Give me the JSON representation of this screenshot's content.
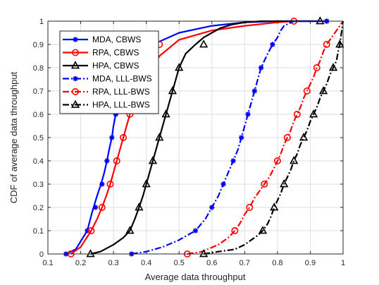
{
  "chart_data": {
    "type": "line",
    "title": "",
    "xlabel": "Average data throughput",
    "ylabel": "CDF of average data throughput",
    "xlim": [
      0.1,
      1.0
    ],
    "ylim": [
      0,
      1
    ],
    "xticks": [
      "0.1",
      "0.2",
      "0.3",
      "0.4",
      "0.5",
      "0.6",
      "0.7",
      "0.8",
      "0.9",
      "1"
    ],
    "yticks": [
      "0",
      "0.1",
      "0.2",
      "0.3",
      "0.4",
      "0.5",
      "0.6",
      "0.7",
      "0.8",
      "0.9",
      "1"
    ],
    "grid": true,
    "legend_position": "top-left",
    "series": [
      {
        "name": "MDA, CBWS",
        "color": "#0000ff",
        "line_style": "solid",
        "marker": "asterisk",
        "x": [
          0.155,
          0.185,
          0.22,
          0.235,
          0.25,
          0.262,
          0.272,
          0.28,
          0.287,
          0.295,
          0.3,
          0.307,
          0.312,
          0.32,
          0.33,
          0.345,
          0.37,
          0.42,
          0.5,
          0.6,
          0.7,
          0.8,
          0.9,
          0.95
        ],
        "y": [
          0.0,
          0.02,
          0.1,
          0.18,
          0.25,
          0.3,
          0.35,
          0.4,
          0.45,
          0.5,
          0.55,
          0.6,
          0.65,
          0.7,
          0.75,
          0.8,
          0.85,
          0.9,
          0.95,
          0.98,
          0.995,
          1.0,
          1.0,
          1.0
        ],
        "marker_y": [
          0.0,
          0.1,
          0.2,
          0.3,
          0.4,
          0.5,
          0.6,
          0.7,
          0.8,
          0.9,
          1.0
        ],
        "marker_x": [
          0.155,
          0.22,
          0.245,
          0.265,
          0.28,
          0.295,
          0.307,
          0.32,
          0.345,
          0.42,
          0.95
        ]
      },
      {
        "name": "RPA, CBWS",
        "color": "#ff0000",
        "line_style": "solid",
        "marker": "circle",
        "x": [
          0.17,
          0.2,
          0.232,
          0.25,
          0.265,
          0.278,
          0.29,
          0.3,
          0.31,
          0.32,
          0.33,
          0.34,
          0.35,
          0.36,
          0.38,
          0.4,
          0.44,
          0.5,
          0.6,
          0.7,
          0.8,
          0.85
        ],
        "y": [
          0.0,
          0.03,
          0.1,
          0.15,
          0.2,
          0.25,
          0.3,
          0.35,
          0.4,
          0.45,
          0.5,
          0.55,
          0.6,
          0.65,
          0.7,
          0.75,
          0.85,
          0.92,
          0.96,
          0.98,
          0.995,
          1.0
        ],
        "marker_y": [
          0.0,
          0.1,
          0.2,
          0.3,
          0.4,
          0.5,
          0.6,
          0.7,
          0.8,
          0.9,
          1.0
        ],
        "marker_x": [
          0.17,
          0.232,
          0.265,
          0.29,
          0.31,
          0.33,
          0.35,
          0.38,
          0.4,
          0.44,
          0.85
        ]
      },
      {
        "name": "HPA, CBWS",
        "color": "#000000",
        "line_style": "solid",
        "marker": "triangle",
        "x": [
          0.23,
          0.26,
          0.3,
          0.33,
          0.35,
          0.365,
          0.378,
          0.39,
          0.4,
          0.41,
          0.42,
          0.43,
          0.44,
          0.45,
          0.46,
          0.47,
          0.48,
          0.49,
          0.5,
          0.51,
          0.52,
          0.535,
          0.55,
          0.575,
          0.6,
          0.625,
          0.66,
          0.7,
          0.75,
          0.8,
          0.85,
          0.93
        ],
        "y": [
          0.0,
          0.01,
          0.04,
          0.07,
          0.1,
          0.15,
          0.2,
          0.25,
          0.3,
          0.35,
          0.4,
          0.45,
          0.5,
          0.55,
          0.6,
          0.65,
          0.7,
          0.75,
          0.8,
          0.83,
          0.86,
          0.88,
          0.9,
          0.93,
          0.95,
          0.97,
          0.985,
          0.995,
          1.0,
          1.0,
          1.0,
          1.0
        ],
        "marker_y": [
          0.0,
          0.1,
          0.2,
          0.3,
          0.4,
          0.5,
          0.6,
          0.7,
          0.8,
          0.9,
          1.0
        ],
        "marker_x": [
          0.23,
          0.35,
          0.378,
          0.4,
          0.42,
          0.44,
          0.46,
          0.48,
          0.5,
          0.575,
          0.93
        ]
      },
      {
        "name": "MDA, LLL-BWS",
        "color": "#0000ff",
        "line_style": "dash-dot",
        "marker": "asterisk",
        "x": [
          0.355,
          0.4,
          0.45,
          0.5,
          0.55,
          0.58,
          0.6,
          0.62,
          0.635,
          0.65,
          0.665,
          0.68,
          0.69,
          0.7,
          0.71,
          0.72,
          0.73,
          0.74,
          0.75,
          0.76,
          0.77,
          0.785,
          0.8,
          0.81,
          0.82,
          0.835,
          0.85,
          0.87,
          0.9,
          0.95
        ],
        "y": [
          0.0,
          0.01,
          0.03,
          0.06,
          0.1,
          0.15,
          0.2,
          0.25,
          0.3,
          0.35,
          0.4,
          0.45,
          0.5,
          0.55,
          0.6,
          0.65,
          0.7,
          0.75,
          0.8,
          0.83,
          0.86,
          0.9,
          0.93,
          0.96,
          0.98,
          0.99,
          1.0,
          1.0,
          1.0,
          1.0
        ],
        "marker_y": [
          0.0,
          0.1,
          0.2,
          0.3,
          0.4,
          0.5,
          0.6,
          0.7,
          0.8,
          0.9,
          1.0
        ],
        "marker_x": [
          0.355,
          0.55,
          0.6,
          0.635,
          0.665,
          0.69,
          0.71,
          0.73,
          0.75,
          0.785,
          0.95
        ]
      },
      {
        "name": "RPA, LLL-BWS",
        "color": "#ff0000",
        "line_style": "dash-dot",
        "marker": "circle",
        "x": [
          0.525,
          0.57,
          0.62,
          0.65,
          0.67,
          0.685,
          0.7,
          0.715,
          0.73,
          0.745,
          0.76,
          0.775,
          0.79,
          0.8,
          0.81,
          0.82,
          0.83,
          0.84,
          0.85,
          0.86,
          0.87,
          0.88,
          0.89,
          0.9,
          0.91,
          0.92,
          0.93,
          0.94,
          0.95,
          0.96,
          0.97,
          0.98,
          0.99,
          1.0
        ],
        "y": [
          0.0,
          0.01,
          0.04,
          0.07,
          0.1,
          0.13,
          0.17,
          0.2,
          0.24,
          0.27,
          0.3,
          0.33,
          0.37,
          0.4,
          0.43,
          0.47,
          0.5,
          0.53,
          0.57,
          0.6,
          0.63,
          0.67,
          0.7,
          0.73,
          0.76,
          0.8,
          0.83,
          0.87,
          0.9,
          0.92,
          0.94,
          0.96,
          0.98,
          1.0
        ],
        "marker_y": [
          0.0,
          0.1,
          0.2,
          0.3,
          0.4,
          0.5,
          0.6,
          0.7,
          0.8,
          0.9
        ],
        "marker_x": [
          0.525,
          0.67,
          0.715,
          0.76,
          0.8,
          0.83,
          0.86,
          0.89,
          0.92,
          0.95
        ]
      },
      {
        "name": "HPA, LLL-BWS",
        "color": "#000000",
        "line_style": "dash-dot",
        "marker": "triangle",
        "x": [
          0.575,
          0.62,
          0.67,
          0.7,
          0.72,
          0.74,
          0.755,
          0.77,
          0.78,
          0.79,
          0.8,
          0.81,
          0.82,
          0.83,
          0.84,
          0.85,
          0.86,
          0.87,
          0.88,
          0.89,
          0.9,
          0.91,
          0.92,
          0.93,
          0.94,
          0.95,
          0.96,
          0.97,
          0.98,
          0.985,
          0.99,
          0.995,
          1.0
        ],
        "y": [
          0.0,
          0.01,
          0.02,
          0.04,
          0.06,
          0.08,
          0.1,
          0.13,
          0.16,
          0.2,
          0.23,
          0.26,
          0.3,
          0.33,
          0.36,
          0.4,
          0.43,
          0.47,
          0.5,
          0.53,
          0.57,
          0.6,
          0.63,
          0.67,
          0.7,
          0.73,
          0.77,
          0.8,
          0.83,
          0.87,
          0.9,
          0.95,
          1.0
        ],
        "marker_y": [
          0.0,
          0.1,
          0.2,
          0.3,
          0.4,
          0.5,
          0.6,
          0.7,
          0.8,
          0.9
        ],
        "marker_x": [
          0.575,
          0.755,
          0.79,
          0.82,
          0.85,
          0.88,
          0.91,
          0.94,
          0.97,
          0.99
        ]
      }
    ]
  }
}
